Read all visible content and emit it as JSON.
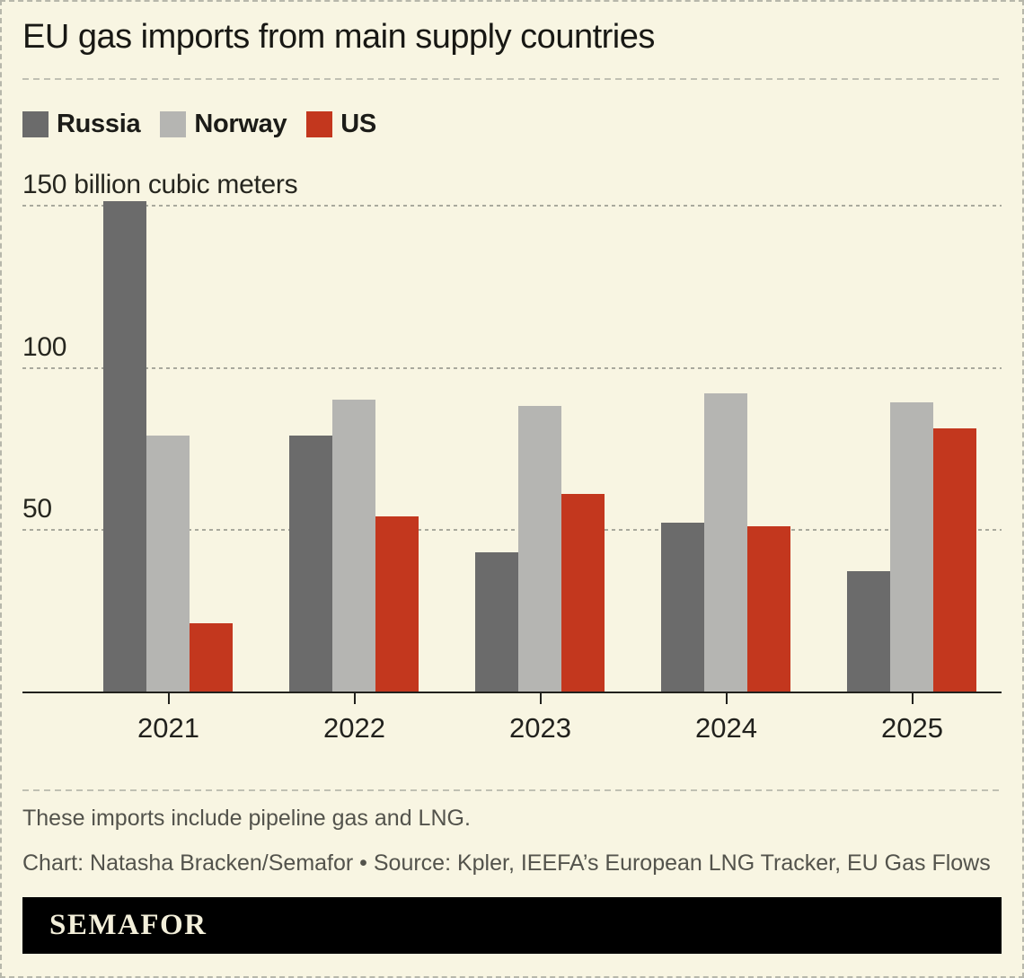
{
  "title": "EU gas imports from main supply countries",
  "legend": [
    {
      "label": "Russia",
      "color": "#6b6b6b"
    },
    {
      "label": "Norway",
      "color": "#b5b5b2"
    },
    {
      "label": "US",
      "color": "#c3371e"
    }
  ],
  "chart_data": {
    "type": "bar",
    "title": "EU gas imports from main supply countries",
    "unit_label": "150 billion cubic meters",
    "categories": [
      "2021",
      "2022",
      "2023",
      "2024",
      "2025"
    ],
    "series": [
      {
        "name": "Russia",
        "color": "#6b6b6b",
        "values": [
          151,
          79,
          43,
          52,
          37
        ]
      },
      {
        "name": "Norway",
        "color": "#b5b5b2",
        "values": [
          79,
          90,
          88,
          92,
          89
        ]
      },
      {
        "name": "US",
        "color": "#c3371e",
        "values": [
          21,
          54,
          61,
          51,
          81
        ]
      }
    ],
    "ylabel": "billion cubic meters",
    "ylim": [
      0,
      150
    ],
    "yticks": [
      50,
      100,
      150
    ],
    "grid": "horizontal-dashed",
    "legend_position": "top-left"
  },
  "footer": {
    "note": "These imports include pipeline gas and LNG.",
    "credit": "Chart: Natasha Bracken/Semafor • Source: Kpler, IEEFA’s European LNG Tracker, EU Gas Flows",
    "logo": "SEMAFOR"
  },
  "colors": {
    "background": "#f8f5e2",
    "axis": "#21211d",
    "gridline": "#a9a99d",
    "text": "#181814",
    "muted_text": "#53534c",
    "logo_bg": "#000000",
    "logo_text": "#f3efda"
  }
}
